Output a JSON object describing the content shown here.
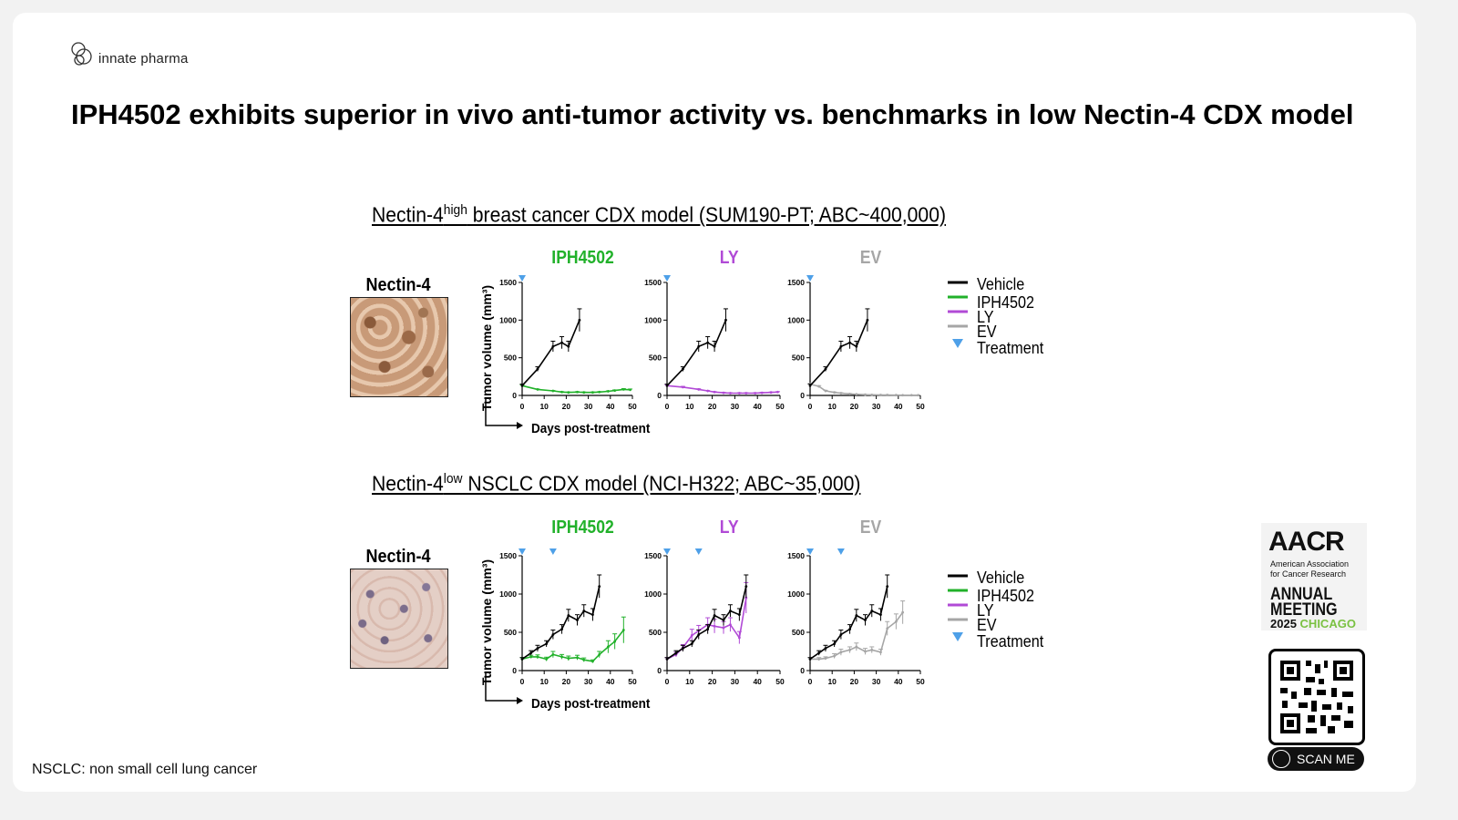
{
  "brand": {
    "logo_text": "innate pharma",
    "logo_icon": "linked-rings-icon"
  },
  "title": "IPH4502 exhibits superior in vivo anti-tumor activity vs. benchmarks in low Nectin-4 CDX model",
  "footnote": "NSCLC: non small cell lung cancer",
  "colors": {
    "vehicle": "#000000",
    "IPH4502": "#21b12a",
    "LY": "#b14ad6",
    "EV": "#a6a6a6",
    "treatment": "#4ea0e8"
  },
  "aacr": {
    "title": "AACR",
    "sub_line1": "American Association",
    "sub_line2": "for Cancer Research",
    "annual": "ANNUAL",
    "meeting": "MEETING",
    "year": "2025",
    "city": "CHICAGO"
  },
  "qr": {
    "button_label": "SCAN ME"
  },
  "sections": [
    {
      "title_pre": "Nectin-4",
      "title_sup": "high",
      "title_post": " breast cancer CDX model (SUM190-PT; ABC~400,000)",
      "ihc_label": "Nectin-4"
    },
    {
      "title_pre": "Nectin-4",
      "title_sup": "low",
      "title_post": " NSCLC CDX model (NCI-H322; ABC~35,000)",
      "ihc_label": "Nectin-4"
    }
  ],
  "legend": [
    "Vehicle",
    "IPH4502",
    "LY",
    "EV",
    "Treatment"
  ],
  "chart_data": [
    {
      "type": "line",
      "panel": "IPH4502",
      "model": "SUM190-PT",
      "xlabel": "Days post-treatment",
      "ylabel": "Tumor volume (mm³)",
      "xlim": [
        0,
        50
      ],
      "ylim": [
        0,
        1500
      ],
      "xticks": [
        0,
        10,
        20,
        30,
        40,
        50
      ],
      "yticks": [
        0,
        500,
        1000,
        1500
      ],
      "treatment_days": [
        0
      ],
      "series": [
        {
          "name": "Vehicle",
          "x": [
            0,
            7,
            14,
            18,
            21,
            26
          ],
          "y": [
            130,
            350,
            650,
            700,
            650,
            1000
          ],
          "err": [
            20,
            30,
            70,
            80,
            70,
            150
          ]
        },
        {
          "name": "IPH4502",
          "x": [
            0,
            7,
            14,
            18,
            21,
            25,
            28,
            32,
            35,
            39,
            42,
            46,
            49
          ],
          "y": [
            130,
            80,
            60,
            45,
            40,
            45,
            40,
            40,
            45,
            55,
            65,
            80,
            75
          ],
          "err": [
            10,
            5,
            5,
            5,
            5,
            5,
            5,
            5,
            5,
            5,
            8,
            10,
            10
          ]
        }
      ]
    },
    {
      "type": "line",
      "panel": "LY",
      "model": "SUM190-PT",
      "xlabel": "Days post-treatment",
      "ylabel": "Tumor volume (mm³)",
      "xlim": [
        0,
        50
      ],
      "ylim": [
        0,
        1500
      ],
      "xticks": [
        0,
        10,
        20,
        30,
        40,
        50
      ],
      "yticks": [
        0,
        500,
        1000,
        1500
      ],
      "treatment_days": [
        0
      ],
      "series": [
        {
          "name": "Vehicle",
          "x": [
            0,
            7,
            14,
            18,
            21,
            26
          ],
          "y": [
            130,
            350,
            650,
            700,
            650,
            1000
          ],
          "err": [
            20,
            30,
            70,
            80,
            70,
            150
          ]
        },
        {
          "name": "LY",
          "x": [
            0,
            7,
            14,
            18,
            21,
            25,
            28,
            32,
            35,
            39,
            42,
            46,
            49
          ],
          "y": [
            130,
            110,
            80,
            60,
            45,
            35,
            30,
            30,
            30,
            30,
            35,
            40,
            45
          ],
          "err": [
            10,
            10,
            8,
            5,
            5,
            5,
            5,
            5,
            5,
            5,
            5,
            5,
            5
          ]
        }
      ]
    },
    {
      "type": "line",
      "panel": "EV",
      "model": "SUM190-PT",
      "xlabel": "Days post-treatment",
      "ylabel": "Tumor volume (mm³)",
      "xlim": [
        0,
        50
      ],
      "ylim": [
        0,
        1500
      ],
      "xticks": [
        0,
        10,
        20,
        30,
        40,
        50
      ],
      "yticks": [
        0,
        500,
        1000,
        1500
      ],
      "treatment_days": [
        0
      ],
      "series": [
        {
          "name": "Vehicle",
          "x": [
            0,
            7,
            14,
            18,
            21,
            26
          ],
          "y": [
            130,
            350,
            650,
            700,
            650,
            1000
          ],
          "err": [
            20,
            30,
            70,
            80,
            70,
            150
          ]
        },
        {
          "name": "EV",
          "x": [
            0,
            4,
            7,
            11,
            14,
            18,
            21,
            25,
            28,
            32,
            35,
            39,
            42,
            46,
            49
          ],
          "y": [
            150,
            120,
            60,
            40,
            30,
            20,
            15,
            10,
            8,
            5,
            5,
            4,
            3,
            3,
            3
          ],
          "err": [
            10,
            10,
            8,
            5,
            5,
            5,
            3,
            3,
            2,
            2,
            2,
            2,
            2,
            2,
            2
          ]
        }
      ]
    },
    {
      "type": "line",
      "panel": "IPH4502",
      "model": "NCI-H322",
      "xlabel": "Days post-treatment",
      "ylabel": "Tumor volume (mm³)",
      "xlim": [
        0,
        50
      ],
      "ylim": [
        0,
        1500
      ],
      "xticks": [
        0,
        10,
        20,
        30,
        40,
        50
      ],
      "yticks": [
        0,
        500,
        1000,
        1500
      ],
      "treatment_days": [
        0,
        14
      ],
      "series": [
        {
          "name": "Vehicle",
          "x": [
            0,
            4,
            7,
            11,
            14,
            18,
            21,
            25,
            28,
            32,
            35
          ],
          "y": [
            150,
            230,
            290,
            350,
            470,
            540,
            720,
            660,
            780,
            730,
            1100
          ],
          "err": [
            20,
            30,
            40,
            40,
            60,
            60,
            80,
            70,
            80,
            80,
            150
          ]
        },
        {
          "name": "IPH4502",
          "x": [
            0,
            4,
            7,
            11,
            14,
            18,
            21,
            25,
            28,
            32,
            35,
            39,
            42,
            46
          ],
          "y": [
            150,
            180,
            180,
            150,
            210,
            180,
            160,
            170,
            140,
            120,
            210,
            310,
            380,
            530
          ],
          "err": [
            20,
            20,
            25,
            25,
            40,
            30,
            30,
            30,
            25,
            20,
            40,
            80,
            100,
            170
          ]
        }
      ]
    },
    {
      "type": "line",
      "panel": "LY",
      "model": "NCI-H322",
      "xlabel": "Days post-treatment",
      "ylabel": "Tumor volume (mm³)",
      "xlim": [
        0,
        50
      ],
      "ylim": [
        0,
        1500
      ],
      "xticks": [
        0,
        10,
        20,
        30,
        40,
        50
      ],
      "yticks": [
        0,
        500,
        1000,
        1500
      ],
      "treatment_days": [
        0,
        14
      ],
      "series": [
        {
          "name": "Vehicle",
          "x": [
            0,
            4,
            7,
            11,
            14,
            18,
            21,
            25,
            28,
            32,
            35
          ],
          "y": [
            150,
            230,
            290,
            350,
            470,
            540,
            720,
            660,
            780,
            730,
            1100
          ],
          "err": [
            20,
            30,
            40,
            40,
            60,
            60,
            80,
            70,
            80,
            80,
            150
          ]
        },
        {
          "name": "LY",
          "x": [
            0,
            4,
            7,
            11,
            14,
            18,
            21,
            25,
            28,
            32,
            35
          ],
          "y": [
            150,
            210,
            300,
            460,
            520,
            600,
            580,
            560,
            600,
            430,
            950
          ],
          "err": [
            20,
            30,
            40,
            80,
            70,
            90,
            90,
            80,
            90,
            80,
            200
          ]
        }
      ]
    },
    {
      "type": "line",
      "panel": "EV",
      "model": "NCI-H322",
      "xlabel": "Days post-treatment",
      "ylabel": "Tumor volume (mm³)",
      "xlim": [
        0,
        50
      ],
      "ylim": [
        0,
        1500
      ],
      "xticks": [
        0,
        10,
        20,
        30,
        40,
        50
      ],
      "yticks": [
        0,
        500,
        1000,
        1500
      ],
      "treatment_days": [
        0,
        14
      ],
      "series": [
        {
          "name": "Vehicle",
          "x": [
            0,
            4,
            7,
            11,
            14,
            18,
            21,
            25,
            28,
            32,
            35
          ],
          "y": [
            150,
            230,
            290,
            350,
            470,
            540,
            720,
            660,
            780,
            730,
            1100
          ],
          "err": [
            20,
            30,
            40,
            40,
            60,
            60,
            80,
            70,
            80,
            80,
            150
          ]
        },
        {
          "name": "EV",
          "x": [
            0,
            4,
            7,
            11,
            14,
            18,
            21,
            25,
            28,
            32,
            35,
            39,
            42
          ],
          "y": [
            150,
            150,
            160,
            190,
            240,
            270,
            310,
            250,
            270,
            240,
            550,
            640,
            760
          ],
          "err": [
            20,
            20,
            20,
            30,
            40,
            40,
            50,
            40,
            40,
            40,
            90,
            100,
            150
          ]
        }
      ]
    }
  ]
}
